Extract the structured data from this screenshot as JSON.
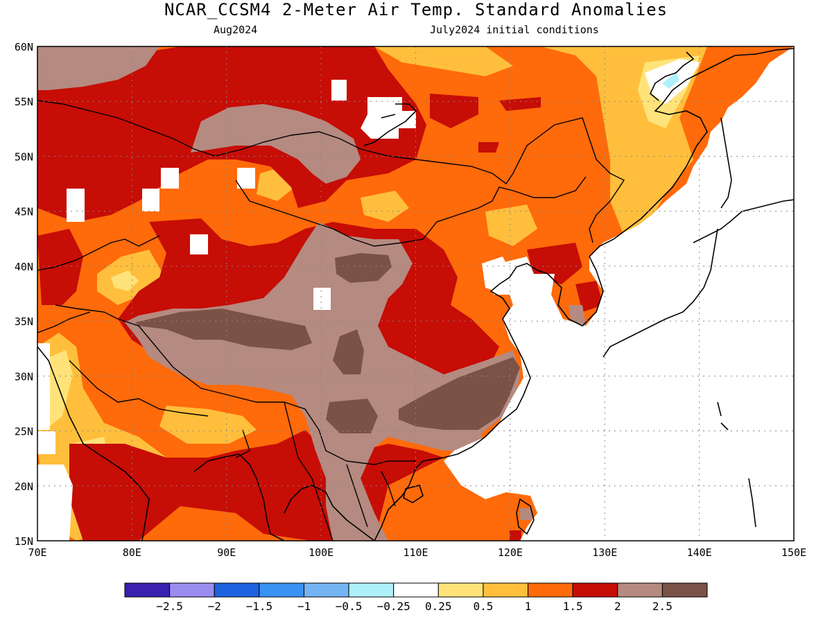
{
  "title": "NCAR_CCSM4 2-Meter Air Temp. Standard Anomalies",
  "subtitle_left": "Aug2024",
  "subtitle_right": "July2024 initial conditions",
  "map": {
    "lat_labels": [
      "60N",
      "55N",
      "50N",
      "45N",
      "40N",
      "35N",
      "30N",
      "25N",
      "20N",
      "15N"
    ],
    "lon_labels": [
      "70E",
      "80E",
      "90E",
      "100E",
      "110E",
      "120E",
      "130E",
      "140E",
      "150E"
    ]
  },
  "legend": {
    "colors": [
      "#3a20b0",
      "#9b8cf0",
      "#1f62e0",
      "#3a92f2",
      "#74b4f2",
      "#aef0fa",
      "#ffffff",
      "#ffe37a",
      "#ffbf3c",
      "#ff6a0a",
      "#c60d06",
      "#b58a80",
      "#7a5246"
    ],
    "labels": [
      "-2.5",
      "-2",
      "-1.5",
      "-1",
      "-0.5",
      "-0.25",
      "0.25",
      "0.5",
      "1",
      "1.5",
      "2",
      "2.5"
    ]
  },
  "colors": {
    "white": "#ffffff",
    "yellow": "#ffe37a",
    "lightorange": "#ffbf3c",
    "orange": "#ff6a0a",
    "red": "#c60d06",
    "taupe": "#b58a80",
    "brown": "#7a5246",
    "lightcyan": "#aef0fa"
  }
}
